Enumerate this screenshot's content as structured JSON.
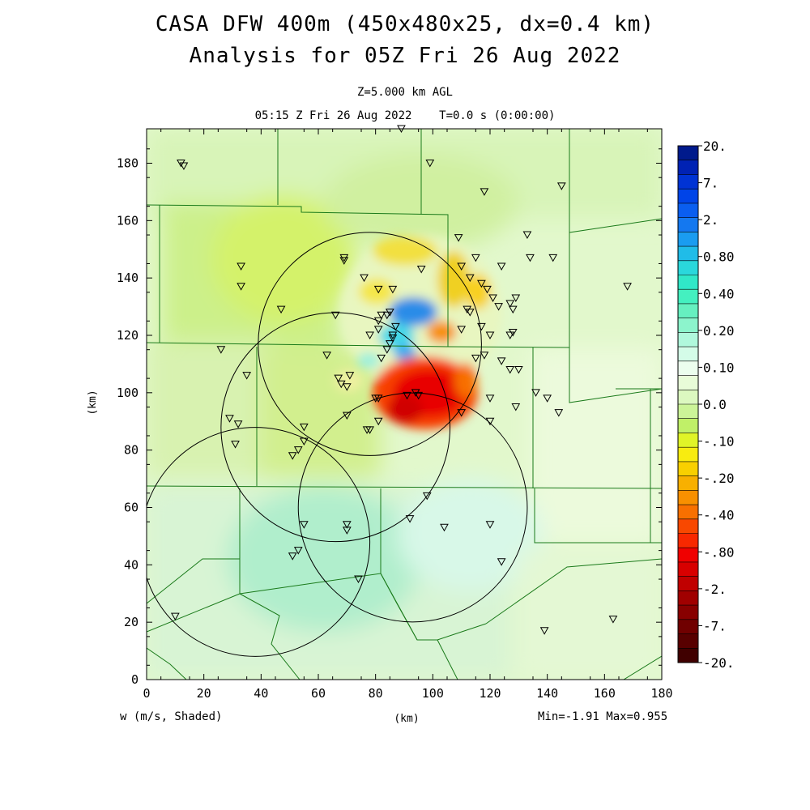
{
  "chart_data": {
    "type": "heatmap",
    "title": "CASA DFW 400m (450x480x25, dx=0.4 km)",
    "subtitle": "Analysis for 05Z Fri 26 Aug 2022",
    "level_label": "Z=5.000 km AGL",
    "time_label": "05:15 Z Fri 26 Aug 2022    T=0.0 s (0:00:00)",
    "xlabel": "(km)",
    "ylabel": "(km)",
    "field_label": "w (m/s, Shaded)",
    "minmax_label": "Min=-1.91 Max=0.955",
    "min": -1.91,
    "max": 0.955,
    "xlim": [
      0,
      180
    ],
    "ylim": [
      0,
      192
    ],
    "xticks": [
      0,
      20,
      40,
      60,
      80,
      100,
      120,
      140,
      160,
      180
    ],
    "yticks": [
      0,
      20,
      40,
      60,
      80,
      100,
      120,
      140,
      160,
      180
    ],
    "colorbar": {
      "labels": [
        "20.",
        "7.",
        "2.",
        "0.80",
        "0.40",
        "0.20",
        "0.10",
        "0.0",
        "-.10",
        "-.20",
        "-.40",
        "-.80",
        "-2.",
        "-7.",
        "-20."
      ],
      "colors": [
        "#001a8c",
        "#0022b4",
        "#0033d4",
        "#0044e8",
        "#0a5ef0",
        "#1478f0",
        "#1a9cf0",
        "#20bce8",
        "#2ad8dc",
        "#30e8c8",
        "#44f0c0",
        "#66f0c0",
        "#8cf4cc",
        "#b0f8dc",
        "#d4fce8",
        "#ecfeee",
        "#e8fcd8",
        "#dcf8c0",
        "#ccf498",
        "#c0f068",
        "#e0f428",
        "#f8ec10",
        "#f8d000",
        "#f8b000",
        "#f89000",
        "#f87000",
        "#f84800",
        "#f82800",
        "#f00000",
        "#d80000",
        "#c00000",
        "#a00000",
        "#880000",
        "#700000",
        "#580000",
        "#400000"
      ]
    },
    "radars": [
      {
        "cx": 78,
        "cy": 117,
        "r": 39
      },
      {
        "cx": 66,
        "cy": 88,
        "r": 40
      },
      {
        "cx": 38,
        "cy": 48,
        "r": 40
      },
      {
        "cx": 93,
        "cy": 60,
        "r": 40
      }
    ],
    "stations": [
      [
        12,
        180
      ],
      [
        13,
        179
      ],
      [
        89,
        192
      ],
      [
        99,
        180
      ],
      [
        118,
        170
      ],
      [
        145,
        172
      ],
      [
        109,
        154
      ],
      [
        133,
        155
      ],
      [
        69,
        147
      ],
      [
        69,
        146
      ],
      [
        115,
        147
      ],
      [
        134,
        147
      ],
      [
        142,
        147
      ],
      [
        33,
        144
      ],
      [
        110,
        144
      ],
      [
        124,
        144
      ],
      [
        96,
        143
      ],
      [
        76,
        140
      ],
      [
        113,
        140
      ],
      [
        117,
        138
      ],
      [
        168,
        137
      ],
      [
        33,
        137
      ],
      [
        81,
        136
      ],
      [
        119,
        136
      ],
      [
        121,
        133
      ],
      [
        129,
        133
      ],
      [
        86,
        136
      ],
      [
        127,
        131
      ],
      [
        123,
        130
      ],
      [
        128,
        129
      ],
      [
        47,
        129
      ],
      [
        82,
        127
      ],
      [
        85,
        128
      ],
      [
        84,
        127
      ],
      [
        81,
        125
      ],
      [
        66,
        127
      ],
      [
        112,
        129
      ],
      [
        113,
        128
      ],
      [
        110,
        122
      ],
      [
        117,
        123
      ],
      [
        81,
        122
      ],
      [
        87,
        123
      ],
      [
        120,
        120
      ],
      [
        127,
        120
      ],
      [
        128,
        121
      ],
      [
        78,
        120
      ],
      [
        86,
        120
      ],
      [
        86,
        119
      ],
      [
        85,
        117
      ],
      [
        84,
        115
      ],
      [
        26,
        115
      ],
      [
        63,
        113
      ],
      [
        82,
        112
      ],
      [
        118,
        113
      ],
      [
        115,
        112
      ],
      [
        124,
        111
      ],
      [
        127,
        108
      ],
      [
        130,
        108
      ],
      [
        35,
        106
      ],
      [
        71,
        106
      ],
      [
        67,
        105
      ],
      [
        68,
        103
      ],
      [
        70,
        102
      ],
      [
        136,
        100
      ],
      [
        94,
        100
      ],
      [
        95,
        99
      ],
      [
        91,
        99
      ],
      [
        80,
        98
      ],
      [
        81,
        98
      ],
      [
        120,
        98
      ],
      [
        140,
        98
      ],
      [
        129,
        95
      ],
      [
        144,
        93
      ],
      [
        110,
        93
      ],
      [
        70,
        92
      ],
      [
        29,
        91
      ],
      [
        32,
        89
      ],
      [
        120,
        90
      ],
      [
        81,
        90
      ],
      [
        77,
        87
      ],
      [
        78,
        87
      ],
      [
        55,
        88
      ],
      [
        55,
        83
      ],
      [
        53,
        80
      ],
      [
        51,
        78
      ],
      [
        31,
        82
      ],
      [
        98,
        64
      ],
      [
        92,
        56
      ],
      [
        55,
        54
      ],
      [
        70,
        54
      ],
      [
        70,
        52
      ],
      [
        104,
        53
      ],
      [
        120,
        54
      ],
      [
        53,
        45
      ],
      [
        51,
        43
      ],
      [
        124,
        41
      ],
      [
        74,
        35
      ],
      [
        10,
        22
      ],
      [
        139,
        17
      ],
      [
        163,
        21
      ]
    ]
  }
}
